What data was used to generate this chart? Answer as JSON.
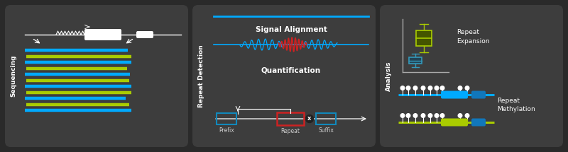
{
  "bg_outer": "#2a2a2a",
  "bg_panel": "#3d3d3d",
  "white": "#ffffff",
  "cyan": "#00aaff",
  "green": "#aacc00",
  "red": "#cc2222",
  "box_blue": "#1188bb",
  "label_color": "#cccccc",
  "gray_blue": "#336688",
  "panel1_label": "Sequencing",
  "panel2_label": "Repeat Detection",
  "panel3_label": "Analysis",
  "signal_alignment": "Signal Alignment",
  "quantification": "Quantification",
  "prefix_label": "Prefix",
  "repeat_label": "Repeat",
  "suffix_label": "Suffix",
  "repeat_expansion": "Repeat\nExpansion",
  "repeat_methylation": "Repeat\nMethylation"
}
